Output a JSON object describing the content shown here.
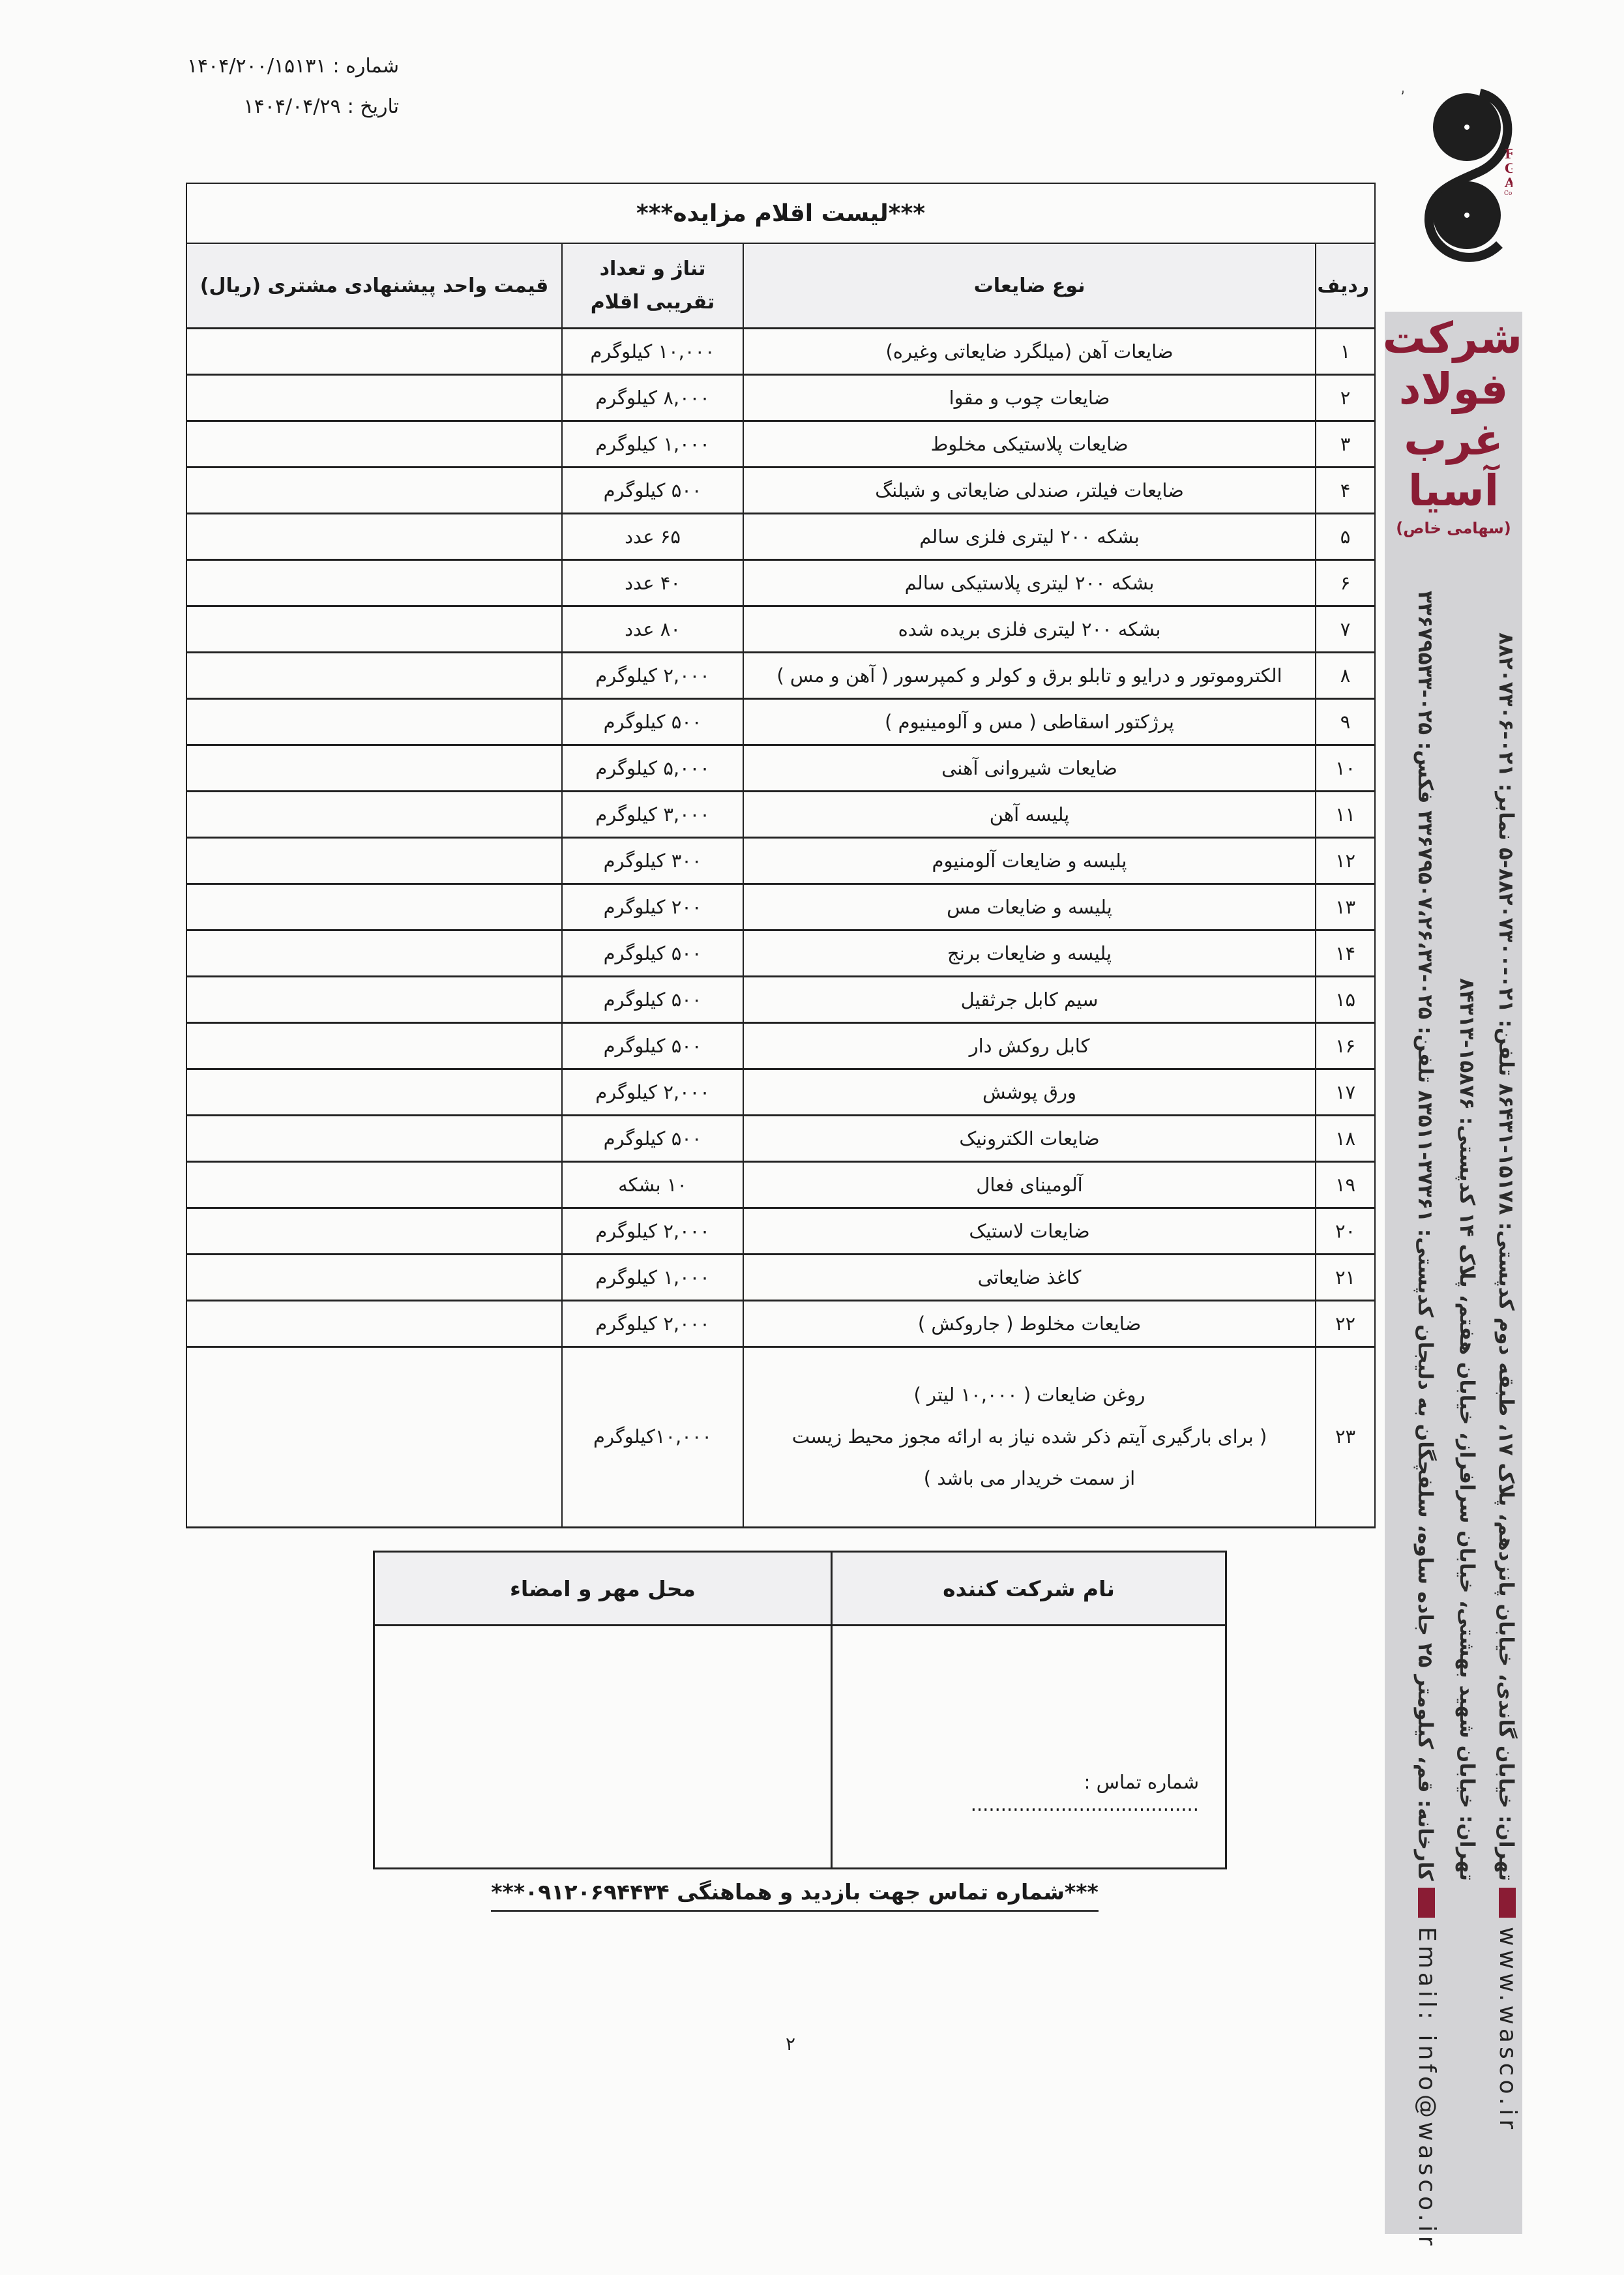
{
  "reference": {
    "number_label": "شماره :",
    "number_value": "۱۴۰۴/۲۰۰/۱۵۱۳۱",
    "date_label": "تاریخ :",
    "date_value": "۱۴۰۴/۰۴/۲۹"
  },
  "logo": {
    "fa_lines": [
      "شرکت",
      "فولاد",
      "غرب",
      "آسیا",
      "(سهامی خاص)"
    ],
    "en": "FGA",
    "en_sub": "Co."
  },
  "colors": {
    "brand": "#8a1c34",
    "band": "#d3d3d6"
  },
  "sidebar": {
    "brand_lines": [
      "شرکت",
      "فولاد",
      "غرب",
      "آسیا"
    ],
    "brand_sub": "(سهامی خاص)",
    "office1": "تهران: خیابان گاندی، خیابان پانزدهم، پلاک ۱۷، طبقه دوم    کدپستی: ۱۵۱۷۸-۸۶۴۳۱    تلفن: ۰۲۱-۸۸۲۰۷۳۰۰-۵    نمابر: ۰۲۱-۸۸۲۰۷۳۰۶",
    "office2": "تهران: خیابان شهید بهشتی، خیابان سرافراز، خیابان هفتم، پلاک ۱۴    کدپستی: ۱۵۸۷۶-۸۴۳۱۳",
    "factory": "کارخانه: قم، کیلومتر ۲۵ جاده ساوه، سلفچگان به دلیجان    کدپستی: ۳۷۳۶۱-۸۳۵۱۱    تلفن: ۰۲۵-۳۳۶۷۹۵۰۷،۲۶،۳۷    فکس: ۰۲۵-۳۳۶۷۹۵۳۳",
    "website": "www.wasco.ir",
    "email": "Email: info@wasco.ir"
  },
  "table": {
    "title": "***لیست اقلام مزایده***",
    "headers": {
      "row": "ردیف",
      "type": "نوع ضایعات",
      "qty_line1": "تناژ و تعداد",
      "qty_line2": "تقریبی اقلام",
      "price": "قیمت واحد پیشنهادی مشتری (ریال)"
    },
    "rows": [
      {
        "n": "۱",
        "type": "ضایعات آهن (میلگرد ضایعاتی وغیره)",
        "qty": "۱۰,۰۰۰ کیلوگرم"
      },
      {
        "n": "۲",
        "type": "ضایعات چوب و مقوا",
        "qty": "۸,۰۰۰ کیلوگرم"
      },
      {
        "n": "۳",
        "type": "ضایعات پلاستیکی مخلوط",
        "qty": "۱,۰۰۰ کیلوگرم"
      },
      {
        "n": "۴",
        "type": "ضایعات فیلتر، صندلی ضایعاتی و شیلنگ",
        "qty": "۵۰۰ کیلوگرم"
      },
      {
        "n": "۵",
        "type": "بشکه ۲۰۰ لیتری فلزی سالم",
        "qty": "۶۵ عدد"
      },
      {
        "n": "۶",
        "type": "بشکه ۲۰۰ لیتری پلاستیکی سالم",
        "qty": "۴۰ عدد"
      },
      {
        "n": "۷",
        "type": "بشکه ۲۰۰ لیتری فلزی بریده شده",
        "qty": "۸۰ عدد"
      },
      {
        "n": "۸",
        "type": "الکتروموتور و درایو و تابلو برق و کولر و کمپرسور ( آهن و مس )",
        "qty": "۲,۰۰۰ کیلوگرم"
      },
      {
        "n": "۹",
        "type": "پرژکتور اسقاطی ( مس و آلومینیوم )",
        "qty": "۵۰۰ کیلوگرم"
      },
      {
        "n": "۱۰",
        "type": "ضایعات شیروانی آهنی",
        "qty": "۵,۰۰۰ کیلوگرم"
      },
      {
        "n": "۱۱",
        "type": "پلیسه آهن",
        "qty": "۳,۰۰۰ کیلوگرم"
      },
      {
        "n": "۱۲",
        "type": "پلیسه و ضایعات آلومنیوم",
        "qty": "۳۰۰ کیلوگرم"
      },
      {
        "n": "۱۳",
        "type": "پلیسه و ضایعات مس",
        "qty": "۲۰۰ کیلوگرم"
      },
      {
        "n": "۱۴",
        "type": "پلیسه و ضایعات برنج",
        "qty": "۵۰۰ کیلوگرم"
      },
      {
        "n": "۱۵",
        "type": "سیم کابل جرثقیل",
        "qty": "۵۰۰ کیلوگرم"
      },
      {
        "n": "۱۶",
        "type": "کابل روکش دار",
        "qty": "۵۰۰ کیلوگرم"
      },
      {
        "n": "۱۷",
        "type": "ورق پوشش",
        "qty": "۲,۰۰۰ کیلوگرم"
      },
      {
        "n": "۱۸",
        "type": "ضایعات الکترونیک",
        "qty": "۵۰۰ کیلوگرم"
      },
      {
        "n": "۱۹",
        "type": "آلومینای فعال",
        "qty": "۱۰ بشکه"
      },
      {
        "n": "۲۰",
        "type": "ضایعات لاستیک",
        "qty": "۲,۰۰۰ کیلوگرم"
      },
      {
        "n": "۲۱",
        "type": "کاغذ ضایعاتی",
        "qty": "۱,۰۰۰ کیلوگرم"
      },
      {
        "n": "۲۲",
        "type": "ضایعات مخلوط ( جاروکش )",
        "qty": "۲,۰۰۰ کیلوگرم"
      },
      {
        "n": "۲۳",
        "type": "روغن ضایعات ( ۱۰,۰۰۰ لیتر )",
        "note1": "( برای بارگیری آیتم ذکر شده نیاز به ارائه مجوز محیط زیست",
        "note2": "از سمت خریدار می باشد )",
        "qty": "۱۰,۰۰۰کیلوگرم"
      }
    ]
  },
  "signature": {
    "company_header": "نام شرکت کننده",
    "stamp_header": "محل مهر و امضاء",
    "contact_label": "شماره تماس : ......................................"
  },
  "footer": {
    "contact": "***شماره تماس جهت بازدید و هماهنگی ۰۹۱۲۰۶۹۴۴۳۴***"
  },
  "page_number": "۲"
}
